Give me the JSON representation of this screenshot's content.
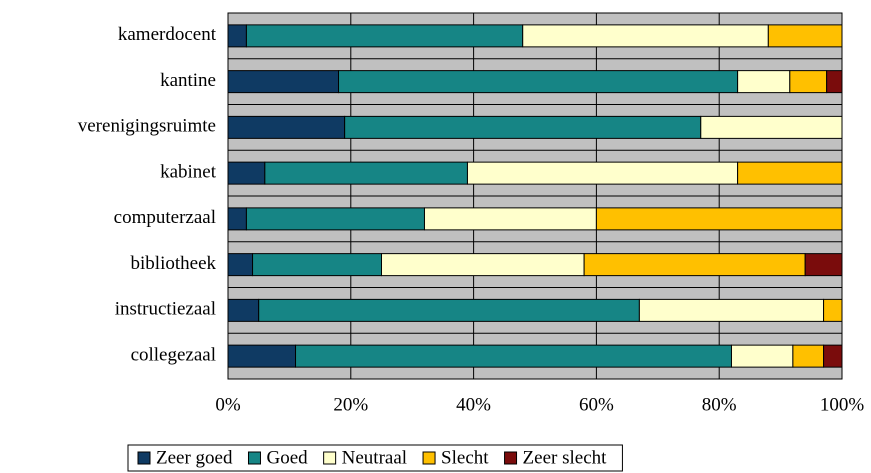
{
  "chart_data": {
    "type": "stacked-barh",
    "categories": [
      "kamerdocent",
      "kantine",
      "verenigingsruimte",
      "kabinet",
      "computerzaal",
      "bibliotheek",
      "instructiezaal",
      "collegezaal"
    ],
    "series": [
      {
        "name": "Zeer goed",
        "color": "#0f3a63",
        "values": [
          3,
          18,
          19,
          6,
          3,
          4,
          5,
          11
        ]
      },
      {
        "name": "Goed",
        "color": "#168585",
        "values": [
          45,
          65,
          58,
          33,
          29,
          21,
          62,
          71
        ]
      },
      {
        "name": "Neutraal",
        "color": "#ffffcc",
        "values": [
          40,
          8.5,
          23,
          44,
          28,
          33,
          30,
          10
        ]
      },
      {
        "name": "Slecht",
        "color": "#ffc000",
        "values": [
          12,
          6,
          0,
          17,
          40,
          36,
          3,
          5
        ]
      },
      {
        "name": "Zeer slecht",
        "color": "#7a0c0c",
        "values": [
          0,
          2.5,
          0,
          0,
          0,
          6,
          0,
          3
        ]
      }
    ],
    "xlim": [
      0,
      100
    ],
    "xticks": [
      {
        "value": 0,
        "label": "0%"
      },
      {
        "value": 20,
        "label": "20%"
      },
      {
        "value": 40,
        "label": "40%"
      },
      {
        "value": 60,
        "label": "60%"
      },
      {
        "value": 80,
        "label": "80%"
      },
      {
        "value": 100,
        "label": "100%"
      }
    ],
    "grid": true,
    "legend": "bottom"
  }
}
